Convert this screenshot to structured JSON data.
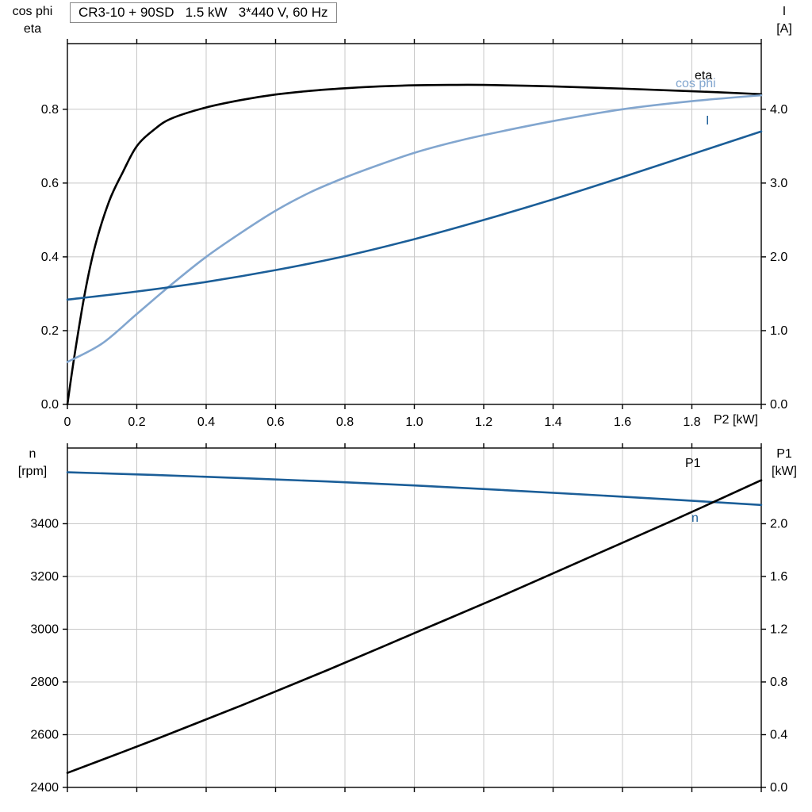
{
  "colors": {
    "curve_black": "#000000",
    "curve_light_blue": "#82a6cf",
    "curve_dark_blue": "#1b5e98",
    "grid": "#c8c8c8",
    "frame": "#000000"
  },
  "axis_labels": {
    "top_left": [
      "cos phi",
      "eta"
    ],
    "top_right": [
      "I",
      "[A]"
    ],
    "bottom_left": [
      "n",
      "[rpm]"
    ],
    "bottom_right": [
      "P1",
      "[kW]"
    ]
  },
  "curve_labels": {
    "eta": "eta",
    "cos_phi": "cos phi",
    "current": "I",
    "p1": "P1",
    "speed": "n"
  },
  "chart_data": [
    {
      "type": "line",
      "title": "CR3-10 + 90SD   1.5 kW   3*440 V, 60 Hz",
      "xlabel": "P2 [kW]",
      "x_range": [
        0,
        2.0
      ],
      "grid": true,
      "x_ticks": {
        "values": [
          0,
          0.2,
          0.4,
          0.6,
          0.8,
          1.0,
          1.2,
          1.4,
          1.6,
          1.8,
          2.0
        ],
        "labels": [
          "0",
          "0.2",
          "0.4",
          "0.6",
          "0.8",
          "1.0",
          "1.2",
          "1.4",
          "1.6",
          "1.8",
          null
        ]
      },
      "left_axis": {
        "label": "cos phi / eta",
        "range": [
          0,
          0.978
        ],
        "ticks": {
          "values": [
            0,
            0.2,
            0.4,
            0.6,
            0.8
          ],
          "labels": [
            "0.0",
            "0.2",
            "0.4",
            "0.6",
            "0.8"
          ]
        }
      },
      "right_axis": {
        "label": "I [A]",
        "range": [
          0,
          4.89
        ],
        "ticks": {
          "values": [
            0,
            1,
            2,
            3,
            4
          ],
          "labels": [
            "0.0",
            "1.0",
            "2.0",
            "3.0",
            "4.0"
          ]
        }
      },
      "series": [
        {
          "id": "eta",
          "name": "eta",
          "axis": "left",
          "color": "#000000",
          "x": [
            0,
            0.02,
            0.05,
            0.08,
            0.12,
            0.16,
            0.2,
            0.25,
            0.3,
            0.4,
            0.5,
            0.6,
            0.7,
            0.8,
            0.9,
            1.0,
            1.1,
            1.2,
            1.4,
            1.6,
            1.8,
            2.0
          ],
          "y": [
            0,
            0.13,
            0.3,
            0.43,
            0.55,
            0.63,
            0.7,
            0.745,
            0.775,
            0.805,
            0.825,
            0.84,
            0.85,
            0.857,
            0.862,
            0.865,
            0.866,
            0.866,
            0.862,
            0.856,
            0.849,
            0.841
          ]
        },
        {
          "id": "cos_phi",
          "name": "cos phi",
          "axis": "left",
          "color": "#82a6cf",
          "x": [
            0,
            0.1,
            0.2,
            0.3,
            0.4,
            0.5,
            0.6,
            0.7,
            0.8,
            0.9,
            1.0,
            1.1,
            1.2,
            1.4,
            1.6,
            1.8,
            2.0
          ],
          "y": [
            0.115,
            0.165,
            0.245,
            0.325,
            0.4,
            0.465,
            0.525,
            0.575,
            0.615,
            0.65,
            0.682,
            0.708,
            0.73,
            0.768,
            0.8,
            0.822,
            0.838
          ]
        },
        {
          "id": "I",
          "name": "I",
          "axis": "right",
          "color": "#1b5e98",
          "x": [
            0,
            0.2,
            0.4,
            0.6,
            0.8,
            1.0,
            1.2,
            1.4,
            1.6,
            1.8,
            2.0
          ],
          "y": [
            1.42,
            1.53,
            1.66,
            1.82,
            2.01,
            2.24,
            2.5,
            2.78,
            3.08,
            3.39,
            3.7
          ]
        }
      ]
    },
    {
      "type": "line",
      "title": "",
      "xlabel": "",
      "x_range": [
        0,
        2.0
      ],
      "grid": true,
      "x_ticks": {
        "values": [
          0,
          0.2,
          0.4,
          0.6,
          0.8,
          1.0,
          1.2,
          1.4,
          1.6,
          1.8,
          2.0
        ],
        "labels": null
      },
      "left_axis": {
        "label": "n [rpm]",
        "range": [
          2400,
          3687
        ],
        "ticks": {
          "values": [
            2400,
            2600,
            2800,
            3000,
            3200,
            3400
          ],
          "labels": [
            "2400",
            "2600",
            "2800",
            "3000",
            "3200",
            "3400"
          ]
        }
      },
      "right_axis": {
        "label": "P1 [kW]",
        "range": [
          0,
          2.574
        ],
        "ticks": {
          "values": [
            0,
            0.4,
            0.8,
            1.2,
            1.6,
            2.0
          ],
          "labels": [
            "0.0",
            "0.4",
            "0.8",
            "1.2",
            "1.6",
            "2.0"
          ]
        }
      },
      "series": [
        {
          "id": "n",
          "name": "n",
          "axis": "left",
          "color": "#1b5e98",
          "x": [
            0,
            0.25,
            0.5,
            0.75,
            1.0,
            1.25,
            1.5,
            1.75,
            2.0
          ],
          "y": [
            3595,
            3585,
            3573,
            3560,
            3545,
            3528,
            3510,
            3491,
            3471
          ]
        },
        {
          "id": "P1",
          "name": "P1",
          "axis": "right",
          "color": "#000000",
          "x": [
            0,
            0.25,
            0.5,
            0.75,
            1.0,
            1.25,
            1.5,
            1.75,
            2.0
          ],
          "y": [
            0.11,
            0.36,
            0.62,
            0.89,
            1.17,
            1.45,
            1.74,
            2.03,
            2.33
          ]
        }
      ]
    }
  ]
}
